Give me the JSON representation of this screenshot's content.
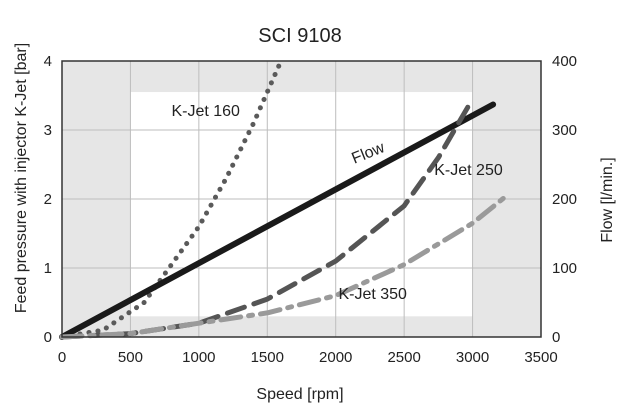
{
  "chart_data": {
    "type": "line",
    "title": "SCI 9108",
    "xlabel": "Speed [rpm]",
    "ylabel": "Feed pressure with injector K-Jet [bar]",
    "y2label": "Flow [l/min.]",
    "xlim": [
      0,
      3500
    ],
    "ylim": [
      0,
      4
    ],
    "y2lim": [
      0,
      400
    ],
    "x_ticks": [
      "0",
      "500",
      "1000",
      "1500",
      "2000",
      "2500",
      "3000",
      "3500"
    ],
    "y_ticks": [
      "0",
      "1",
      "2",
      "3",
      "4"
    ],
    "y2_ticks": [
      "0",
      "100",
      "200",
      "300",
      "400"
    ],
    "grid": true,
    "background": {
      "outer": "#e6e6e6",
      "inner": "#ffffff",
      "inner_x": [
        500,
        3000
      ],
      "inner_y": [
        0.3,
        3.55
      ]
    },
    "series": [
      {
        "name": "K-Jet 160",
        "style": "dotted",
        "color": "#5a5a5a",
        "axis": "left",
        "x": [
          0,
          300,
          600,
          800,
          1000,
          1200,
          1400,
          1600
        ],
        "y": [
          0,
          0.1,
          0.5,
          1.05,
          1.6,
          2.3,
          3.1,
          4.0
        ]
      },
      {
        "name": "Flow",
        "style": "solid",
        "color": "#1a1a1a",
        "axis": "right",
        "x": [
          0,
          3150
        ],
        "y": [
          0,
          337
        ]
      },
      {
        "name": "K-Jet 250",
        "style": "dashed",
        "color": "#555555",
        "axis": "left",
        "x": [
          0,
          500,
          1000,
          1500,
          2000,
          2500,
          2750,
          3000
        ],
        "y": [
          0,
          0.05,
          0.2,
          0.55,
          1.1,
          1.9,
          2.6,
          3.45
        ]
      },
      {
        "name": "K-Jet 350",
        "style": "dashdot",
        "color": "#9a9a9a",
        "axis": "left",
        "x": [
          0,
          500,
          1000,
          1500,
          2000,
          2500,
          3000,
          3250
        ],
        "y": [
          0,
          0.05,
          0.2,
          0.35,
          0.6,
          1.05,
          1.65,
          2.05
        ]
      }
    ],
    "annotations": [
      {
        "text": "K-Jet 160",
        "x": 1050,
        "y": 3.2,
        "anchor": "middle"
      },
      {
        "text": "Flow",
        "x": 2250,
        "y": 2.6,
        "anchor": "middle",
        "rotate": -22
      },
      {
        "text": "K-Jet 250",
        "x": 2720,
        "y": 2.35,
        "anchor": "start"
      },
      {
        "text": "K-Jet 350",
        "x": 2020,
        "y": 0.55,
        "anchor": "start"
      }
    ]
  }
}
